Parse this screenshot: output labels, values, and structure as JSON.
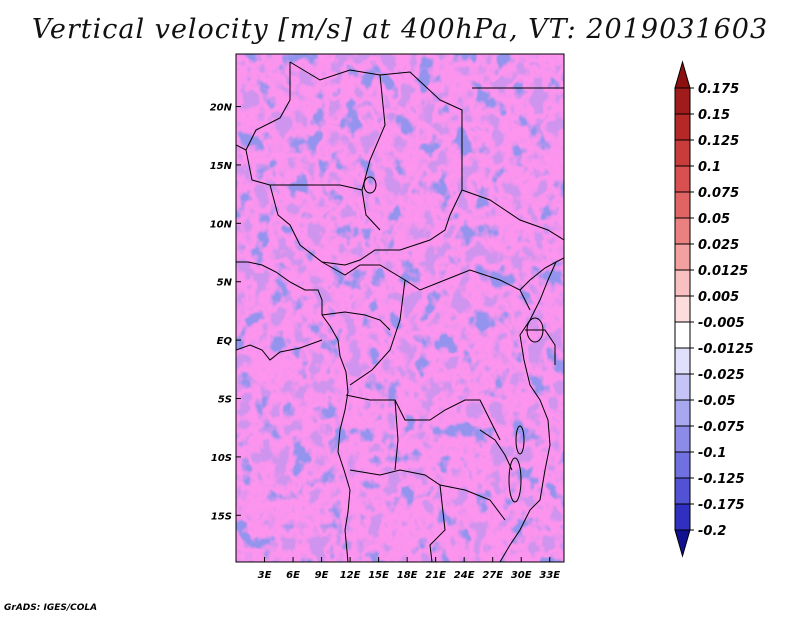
{
  "title": "Vertical velocity [m/s] at 400hPa, VT: 2019031603",
  "credit": "GrADS: IGES/COLA",
  "map": {
    "lon_range": [
      0,
      34.5
    ],
    "lat_range": [
      -19,
      24.5
    ],
    "lon_ticks": [
      {
        "value": 3,
        "label": "3E"
      },
      {
        "value": 6,
        "label": "6E"
      },
      {
        "value": 9,
        "label": "9E"
      },
      {
        "value": 12,
        "label": "12E"
      },
      {
        "value": 15,
        "label": "15E"
      },
      {
        "value": 18,
        "label": "18E"
      },
      {
        "value": 21,
        "label": "21E"
      },
      {
        "value": 24,
        "label": "24E"
      },
      {
        "value": 27,
        "label": "27E"
      },
      {
        "value": 30,
        "label": "30E"
      },
      {
        "value": 33,
        "label": "33E"
      }
    ],
    "lat_ticks": [
      {
        "value": 20,
        "label": "20N"
      },
      {
        "value": 15,
        "label": "15N"
      },
      {
        "value": 10,
        "label": "10N"
      },
      {
        "value": 5,
        "label": "5N"
      },
      {
        "value": 0,
        "label": "EQ"
      },
      {
        "value": -5,
        "label": "5S"
      },
      {
        "value": -10,
        "label": "10S"
      },
      {
        "value": -15,
        "label": "15S"
      }
    ]
  },
  "colorbar": {
    "levels": [
      {
        "label": "0.175",
        "color": "#a01c1c"
      },
      {
        "label": "0.15",
        "color": "#b42828"
      },
      {
        "label": "0.125",
        "color": "#c83c3c"
      },
      {
        "label": "0.1",
        "color": "#d85050"
      },
      {
        "label": "0.075",
        "color": "#e06464"
      },
      {
        "label": "0.05",
        "color": "#ea8080"
      },
      {
        "label": "0.025",
        "color": "#f2a0a0"
      },
      {
        "label": "0.0125",
        "color": "#f8c0c0"
      },
      {
        "label": "0.005",
        "color": "#fcdcdc"
      },
      {
        "label": "-0.005",
        "color": "#ffffff"
      },
      {
        "label": "-0.0125",
        "color": "#e0e0fc"
      },
      {
        "label": "-0.025",
        "color": "#c4c4f6"
      },
      {
        "label": "-0.05",
        "color": "#a8a8f0"
      },
      {
        "label": "-0.075",
        "color": "#8c8ce8"
      },
      {
        "label": "-0.1",
        "color": "#7070e0"
      },
      {
        "label": "-0.125",
        "color": "#5252d4"
      },
      {
        "label": "-0.175",
        "color": "#3030c0"
      },
      {
        "label": "-0.2",
        "color": "#1c1ca8"
      }
    ],
    "top_cap_color": "#8c1010",
    "bottom_cap_color": "#101090"
  }
}
